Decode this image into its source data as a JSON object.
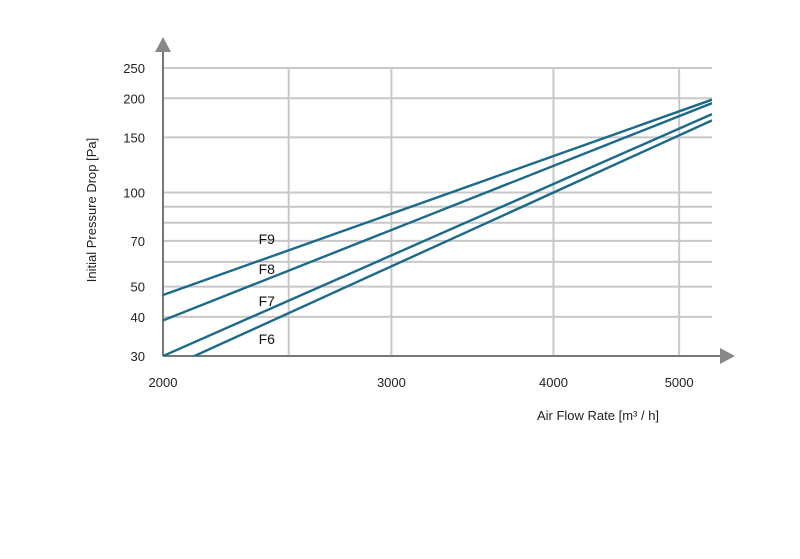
{
  "chart_data": {
    "type": "line",
    "title": "",
    "xlabel": "Air Flow Rate [m³ / h]",
    "ylabel": "Initial Pressure Drop  [Pa]",
    "x_scale": "log",
    "y_scale": "log",
    "xlim": [
      2000,
      5300
    ],
    "ylim": [
      30,
      250
    ],
    "x_ticks": [
      2000,
      3000,
      4000,
      5000
    ],
    "x_grid": [
      2000,
      2500,
      3000,
      4000,
      5000
    ],
    "y_ticks": [
      30,
      40,
      50,
      70,
      100,
      150,
      200,
      250
    ],
    "y_grid": [
      30,
      40,
      50,
      60,
      70,
      80,
      90,
      100,
      150,
      200,
      250
    ],
    "grid": true,
    "line_color": "#1c6a8a",
    "axis_color": "#777777",
    "series": [
      {
        "name": "F9",
        "x": [
          2000,
          5300
        ],
        "y": [
          47,
          198
        ]
      },
      {
        "name": "F8",
        "x": [
          2000,
          5300
        ],
        "y": [
          39,
          193
        ]
      },
      {
        "name": "F7",
        "x": [
          2000,
          5300
        ],
        "y": [
          30,
          178
        ]
      },
      {
        "name": "F6",
        "x": [
          2000,
          5300
        ],
        "y": [
          27,
          170
        ]
      }
    ],
    "annotations": [
      {
        "text": "F9",
        "x": 2370,
        "y": 71
      },
      {
        "text": "F8",
        "x": 2370,
        "y": 57
      },
      {
        "text": "F7",
        "x": 2370,
        "y": 45
      },
      {
        "text": "F6",
        "x": 2370,
        "y": 34
      }
    ]
  }
}
